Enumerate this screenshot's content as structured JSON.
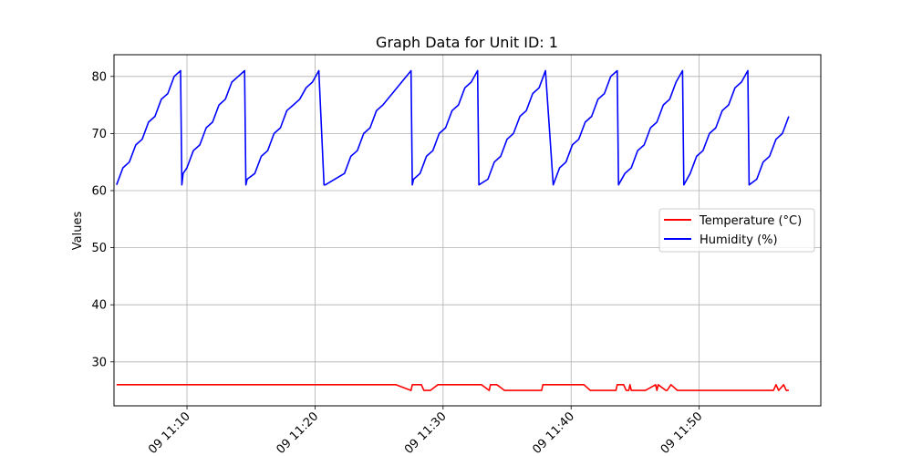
{
  "chart_data": {
    "type": "line",
    "title": "Graph Data for Unit ID: 1",
    "xlabel": "",
    "ylabel": "Values",
    "grid": true,
    "legend_position": "center-right",
    "xlim": [
      4.3,
      59.5
    ],
    "ylim": [
      22.3,
      83.8
    ],
    "x_axis_minutes_of": "11:00",
    "yticks": [
      30,
      40,
      50,
      60,
      70,
      80
    ],
    "xticks": [
      {
        "value": 10,
        "label": "09 11:10"
      },
      {
        "value": 20,
        "label": "09 11:20"
      },
      {
        "value": 30,
        "label": "09 11:30"
      },
      {
        "value": 40,
        "label": "09 11:40"
      },
      {
        "value": 50,
        "label": "09 11:50"
      }
    ],
    "series": [
      {
        "name": "Temperature (°C)",
        "color": "#ff0000",
        "x": [
          4.5,
          26.3,
          27.5,
          27.6,
          28.3,
          28.5,
          29.0,
          29.6,
          30.0,
          33.0,
          33.6,
          33.7,
          34.2,
          34.8,
          37.7,
          37.8,
          41.0,
          41.5,
          43.5,
          43.6,
          44.1,
          44.3,
          44.5,
          44.6,
          44.7,
          45.8,
          46.6,
          46.7,
          46.8,
          47.4,
          47.5,
          47.8,
          48.3,
          48.5,
          55.8,
          56.0,
          56.2,
          56.6,
          56.8,
          57.0
        ],
        "values": [
          26,
          26,
          25,
          26,
          26,
          25,
          25,
          26,
          26,
          26,
          25,
          26,
          26,
          25,
          25,
          26,
          26,
          25,
          25,
          26,
          26,
          25,
          25,
          26,
          25,
          25,
          26,
          25,
          26,
          25,
          25,
          26,
          25,
          25,
          25,
          26,
          25,
          26,
          25,
          25
        ]
      },
      {
        "name": "Humidity (%)",
        "color": "#0000ff",
        "x": [
          4.5,
          5.0,
          5.5,
          6.0,
          6.5,
          7.0,
          7.5,
          8.0,
          8.5,
          9.0,
          9.5,
          9.6,
          9.7,
          10.0,
          10.5,
          11.0,
          11.5,
          12.0,
          12.5,
          13.0,
          13.5,
          14.0,
          14.5,
          14.6,
          14.7,
          15.3,
          15.8,
          16.3,
          16.8,
          17.3,
          17.8,
          18.3,
          18.8,
          19.3,
          19.8,
          20.3,
          20.7,
          20.8,
          22.3,
          22.8,
          23.3,
          23.8,
          24.3,
          24.8,
          25.3,
          27.5,
          27.6,
          27.7,
          28.2,
          28.7,
          29.2,
          29.7,
          30.2,
          30.7,
          31.2,
          31.7,
          32.2,
          32.7,
          32.8,
          33.5,
          34.0,
          34.5,
          35.0,
          35.5,
          36.0,
          36.5,
          37.0,
          37.5,
          38.0,
          38.6,
          39.1,
          39.6,
          40.1,
          40.6,
          41.1,
          41.6,
          42.1,
          42.6,
          43.1,
          43.6,
          43.7,
          44.2,
          44.7,
          45.2,
          45.7,
          46.2,
          46.7,
          47.2,
          47.7,
          48.2,
          48.7,
          48.8,
          49.3,
          49.8,
          50.3,
          50.8,
          51.3,
          51.8,
          52.3,
          52.8,
          53.3,
          53.8,
          53.9,
          54.5,
          55.0,
          55.5,
          56.0,
          56.5,
          57.0
        ],
        "values": [
          61,
          64,
          65,
          68,
          69,
          72,
          73,
          76,
          77,
          80,
          81,
          61,
          63,
          64,
          67,
          68,
          71,
          72,
          75,
          76,
          79,
          80,
          81,
          61,
          62,
          63,
          66,
          67,
          70,
          71,
          74,
          75,
          76,
          78,
          79,
          81,
          61,
          61,
          63,
          66,
          67,
          70,
          71,
          74,
          75,
          81,
          61,
          62,
          63,
          66,
          67,
          70,
          71,
          74,
          75,
          78,
          79,
          81,
          61,
          62,
          65,
          66,
          69,
          70,
          73,
          74,
          77,
          78,
          81,
          61,
          64,
          65,
          68,
          69,
          72,
          73,
          76,
          77,
          80,
          81,
          61,
          63,
          64,
          67,
          68,
          71,
          72,
          75,
          76,
          79,
          81,
          61,
          63,
          66,
          67,
          70,
          71,
          74,
          75,
          78,
          79,
          81,
          61,
          62,
          65,
          66,
          69,
          70,
          73
        ]
      }
    ]
  }
}
